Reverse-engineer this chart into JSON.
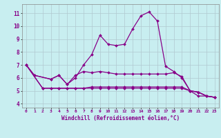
{
  "xlabel": "Windchill (Refroidissement éolien,°C)",
  "xlim": [
    -0.5,
    23.5
  ],
  "ylim": [
    3.7,
    11.7
  ],
  "yticks": [
    4,
    5,
    6,
    7,
    8,
    9,
    10,
    11
  ],
  "xticks": [
    0,
    1,
    2,
    3,
    4,
    5,
    6,
    7,
    8,
    9,
    10,
    11,
    12,
    13,
    14,
    15,
    16,
    17,
    18,
    19,
    20,
    21,
    22,
    23
  ],
  "bg_color": "#c8eef0",
  "line_color": "#880088",
  "grid_color": "#aadddd",
  "series": [
    {
      "x": [
        0,
        1,
        3,
        4,
        5,
        6,
        7,
        8,
        9,
        10,
        11,
        12,
        13,
        14,
        15,
        16,
        17,
        18,
        19,
        20,
        21,
        22,
        23
      ],
      "y": [
        7.0,
        6.2,
        5.9,
        6.2,
        5.5,
        6.0,
        7.0,
        7.8,
        9.3,
        8.6,
        8.5,
        8.6,
        9.8,
        10.8,
        11.1,
        10.4,
        6.9,
        6.5,
        6.0,
        5.0,
        4.6,
        4.6,
        4.5
      ]
    },
    {
      "x": [
        0,
        1,
        3,
        4,
        5,
        6,
        7,
        8,
        9,
        10,
        11,
        12,
        13,
        14,
        15,
        16,
        17,
        18,
        19,
        20,
        21,
        22,
        23
      ],
      "y": [
        7.0,
        6.2,
        5.9,
        6.2,
        5.5,
        6.2,
        6.5,
        6.4,
        6.5,
        6.4,
        6.3,
        6.3,
        6.3,
        6.3,
        6.3,
        6.3,
        6.3,
        6.4,
        6.1,
        5.0,
        4.9,
        4.6,
        4.5
      ]
    },
    {
      "x": [
        0,
        2,
        3,
        4,
        5,
        6,
        7,
        8,
        9,
        10,
        11,
        12,
        13,
        14,
        15,
        16,
        17,
        18,
        19,
        20,
        21,
        22,
        23
      ],
      "y": [
        7.0,
        5.2,
        5.2,
        5.2,
        5.2,
        5.2,
        5.2,
        5.3,
        5.3,
        5.3,
        5.3,
        5.3,
        5.3,
        5.3,
        5.3,
        5.3,
        5.3,
        5.3,
        5.3,
        5.0,
        4.9,
        4.6,
        4.5
      ]
    },
    {
      "x": [
        0,
        2,
        3,
        4,
        5,
        6,
        7,
        8,
        9,
        10,
        11,
        12,
        13,
        14,
        15,
        16,
        17,
        18,
        19,
        20,
        21,
        22,
        23
      ],
      "y": [
        7.0,
        5.2,
        5.2,
        5.2,
        5.2,
        5.2,
        5.2,
        5.2,
        5.2,
        5.2,
        5.2,
        5.2,
        5.2,
        5.2,
        5.2,
        5.2,
        5.2,
        5.2,
        5.2,
        5.0,
        4.9,
        4.6,
        4.5
      ]
    }
  ]
}
